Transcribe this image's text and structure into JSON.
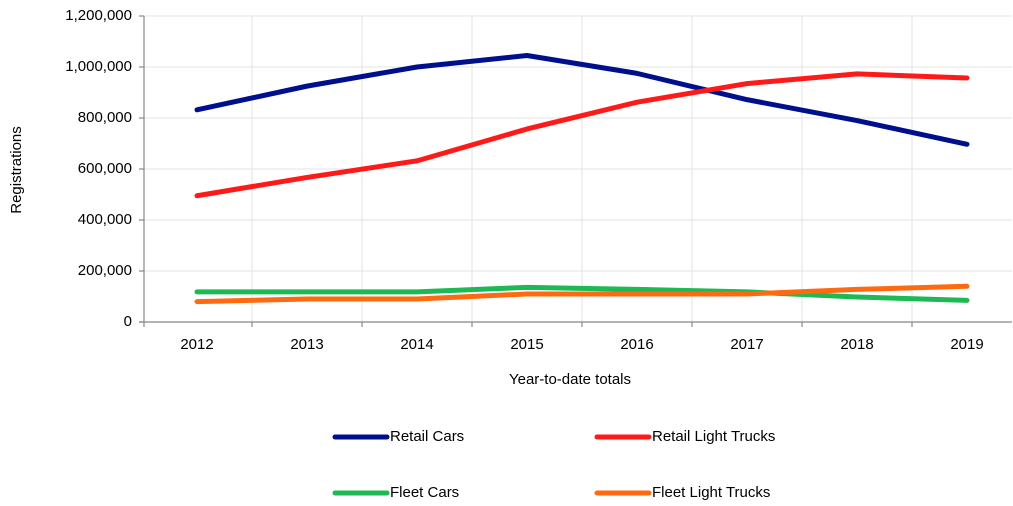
{
  "chart_data": {
    "type": "line",
    "categories": [
      "2012",
      "2013",
      "2014",
      "2015",
      "2016",
      "2017",
      "2018",
      "2019"
    ],
    "series": [
      {
        "name": "Retail Cars",
        "color": "#000f8c",
        "values": [
          832000,
          925000,
          1000000,
          1045000,
          975000,
          872000,
          790000,
          697000
        ]
      },
      {
        "name": "Retail Light Trucks",
        "color": "#ff1a1a",
        "values": [
          495000,
          567000,
          632000,
          757000,
          862000,
          935000,
          973000,
          957000
        ]
      },
      {
        "name": "Fleet Cars",
        "color": "#1db954",
        "values": [
          118000,
          118000,
          118000,
          136000,
          128000,
          118000,
          98000,
          85000
        ]
      },
      {
        "name": "Fleet Light Trucks",
        "color": "#ff6a10",
        "values": [
          80000,
          90000,
          90000,
          110000,
          110000,
          110000,
          128000,
          140000
        ]
      }
    ],
    "xlabel": "Year-to-date totals",
    "ylabel": "Registrations",
    "ylim": [
      0,
      1200000
    ],
    "yticks": [
      0,
      {
        "value": 200000,
        "label": "200,000"
      },
      {
        "value": 400000,
        "label": "400,000"
      },
      {
        "value": 600000,
        "label": "600,000"
      },
      {
        "value": 800000,
        "label": "800,000"
      },
      {
        "value": 1000000,
        "label": "1,000,000"
      },
      {
        "value": 1200000,
        "label": "1,200,000"
      }
    ],
    "grid": true,
    "legend": "bottom"
  }
}
